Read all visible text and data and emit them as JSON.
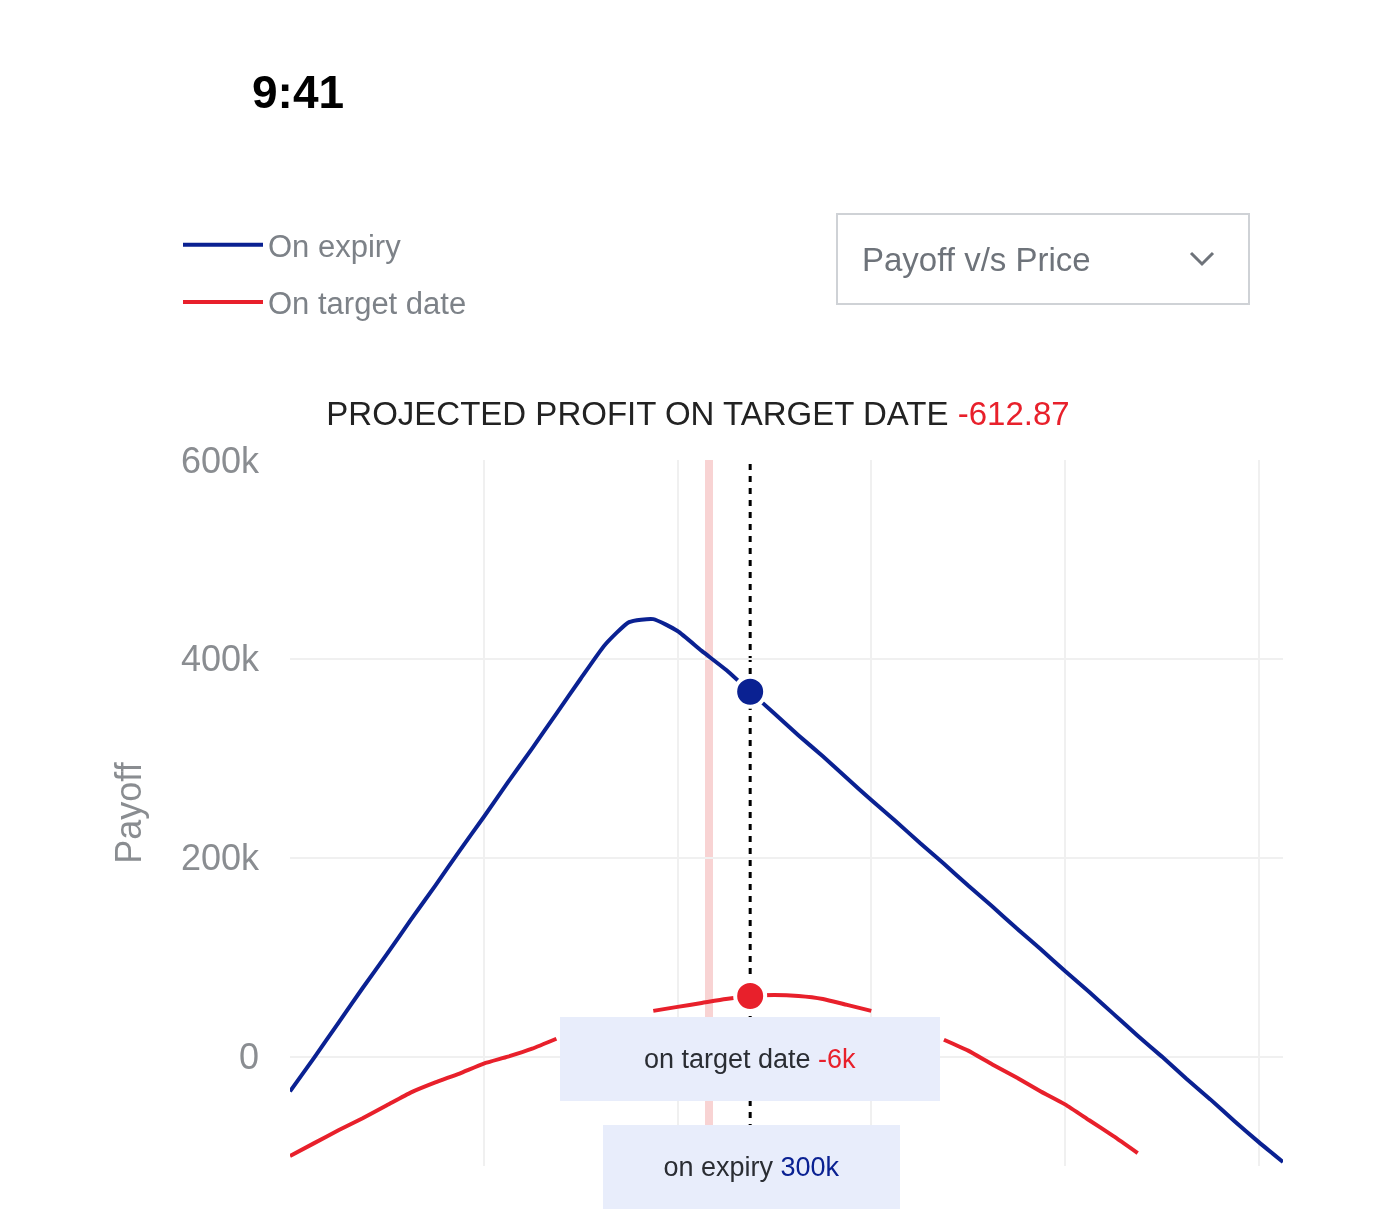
{
  "chart_data": {
    "type": "line",
    "title": "PROJECTED PROFIT ON TARGET DATE -612.87",
    "ylabel": "Payoff",
    "categories": [
      null,
      null,
      null,
      null,
      null,
      null,
      null,
      null,
      null,
      null,
      null,
      null,
      null,
      null,
      null,
      null,
      null,
      null,
      null,
      null,
      null,
      null,
      null,
      null,
      null,
      null,
      null,
      null,
      null,
      null,
      null,
      null,
      null,
      null,
      null,
      null,
      null,
      null,
      null,
      null,
      null,
      null
    ],
    "series": [
      {
        "name": "On expiry",
        "color": "#0a2192",
        "values": [
          -35000,
          -1000,
          34000,
          69000,
          103000,
          138000,
          172000,
          207000,
          241000,
          276000,
          310000,
          345000,
          380000,
          414000,
          437000,
          440000,
          428000,
          408000,
          389000,
          367000,
          345000,
          323000,
          302000,
          280000,
          258000,
          237000,
          215000,
          194000,
          172000,
          151000,
          129000,
          108000,
          86000,
          65000,
          43000,
          21000,
          0,
          -22000,
          -43000,
          -65000,
          -86000,
          -106000
        ]
      },
      {
        "name": "On target date",
        "color": "#e8202b",
        "values": [
          -100000,
          -87000,
          -74000,
          -62000,
          -49000,
          -36000,
          -26000,
          -17000,
          -7000,
          0,
          8000,
          18000,
          null,
          null,
          null,
          46000,
          50000,
          54000,
          58000,
          61000,
          62000,
          61000,
          58000,
          52000,
          46000,
          null,
          null,
          17000,
          6000,
          -8000,
          -21000,
          -35000,
          -48000,
          -64000,
          -80000,
          -97000,
          null,
          null,
          null,
          null,
          null,
          null
        ]
      },
      {
        "type": "scatter",
        "color": "#0a2192",
        "values": [
          null,
          null,
          null,
          null,
          null,
          null,
          null,
          null,
          null,
          null,
          null,
          null,
          null,
          null,
          null,
          null,
          null,
          null,
          null,
          367000,
          null,
          null,
          null,
          null,
          null,
          null,
          null,
          null,
          null,
          null,
          null,
          null,
          null,
          null,
          null,
          null,
          null,
          null,
          null,
          null,
          null,
          null
        ]
      },
      {
        "type": "scatter",
        "color": "#e8202b",
        "values": [
          null,
          null,
          null,
          null,
          null,
          null,
          null,
          null,
          null,
          null,
          null,
          null,
          null,
          null,
          null,
          null,
          null,
          null,
          null,
          61000,
          null,
          null,
          null,
          null,
          null,
          null,
          null,
          null,
          null,
          null,
          null,
          null,
          null,
          null,
          null,
          null,
          null,
          null,
          null,
          null,
          null,
          null
        ]
      }
    ],
    "ylim": [
      -110000,
      600000
    ],
    "yticks": [
      0,
      {
        "value": 200000,
        "label": "200k"
      },
      {
        "value": 400000,
        "label": "400k"
      },
      {
        "value": 600000,
        "label": "600k"
      }
    ],
    "annotations": [
      "9:41",
      "Payoff v/s Price",
      "on target date -6k",
      "on expiry 300k"
    ],
    "grid": true,
    "legend": "top left",
    "tick_labels": "y"
  }
}
